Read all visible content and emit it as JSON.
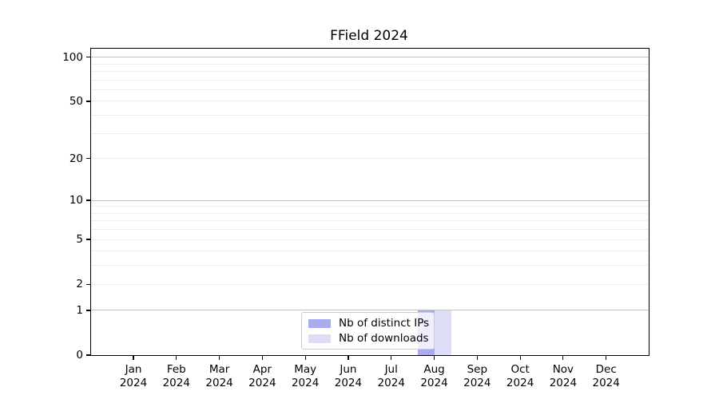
{
  "figure": {
    "title": "FField 2024"
  },
  "chart_data": {
    "type": "bar",
    "title": "FField 2024",
    "categories": [
      "Jan",
      "Feb",
      "Mar",
      "Apr",
      "May",
      "Jun",
      "Jul",
      "Aug",
      "Sep",
      "Oct",
      "Nov",
      "Dec"
    ],
    "category_year": "2024",
    "series": [
      {
        "name": "Nb of distinct IPs",
        "color": "#aaaaee",
        "values": [
          0,
          0,
          0,
          0,
          0,
          0,
          0,
          1,
          0,
          0,
          0,
          0
        ]
      },
      {
        "name": "Nb of downloads",
        "color": "#ddddf8",
        "values": [
          0,
          0,
          0,
          0,
          0,
          0,
          0,
          1,
          0,
          0,
          0,
          0
        ]
      }
    ],
    "xlabel": "",
    "ylabel": "",
    "y_ticks": [
      0,
      1,
      2,
      5,
      10,
      20,
      50,
      100
    ],
    "major_gridlines": [
      1,
      10,
      100
    ],
    "minor_gridlines": [
      2,
      3,
      4,
      5,
      6,
      7,
      8,
      9,
      20,
      30,
      40,
      50,
      60,
      70,
      80,
      90
    ],
    "scale": "log1p",
    "ylim": [
      0,
      114.3
    ],
    "grid": true,
    "legend": {
      "position": "lower center",
      "labels": [
        "Nb of distinct IPs",
        "Nb of downloads"
      ]
    },
    "colors": {
      "major_grid": "#c2c2c2",
      "minor_grid": "#ededed",
      "spine": "#000000",
      "background": "#ffffff"
    }
  }
}
